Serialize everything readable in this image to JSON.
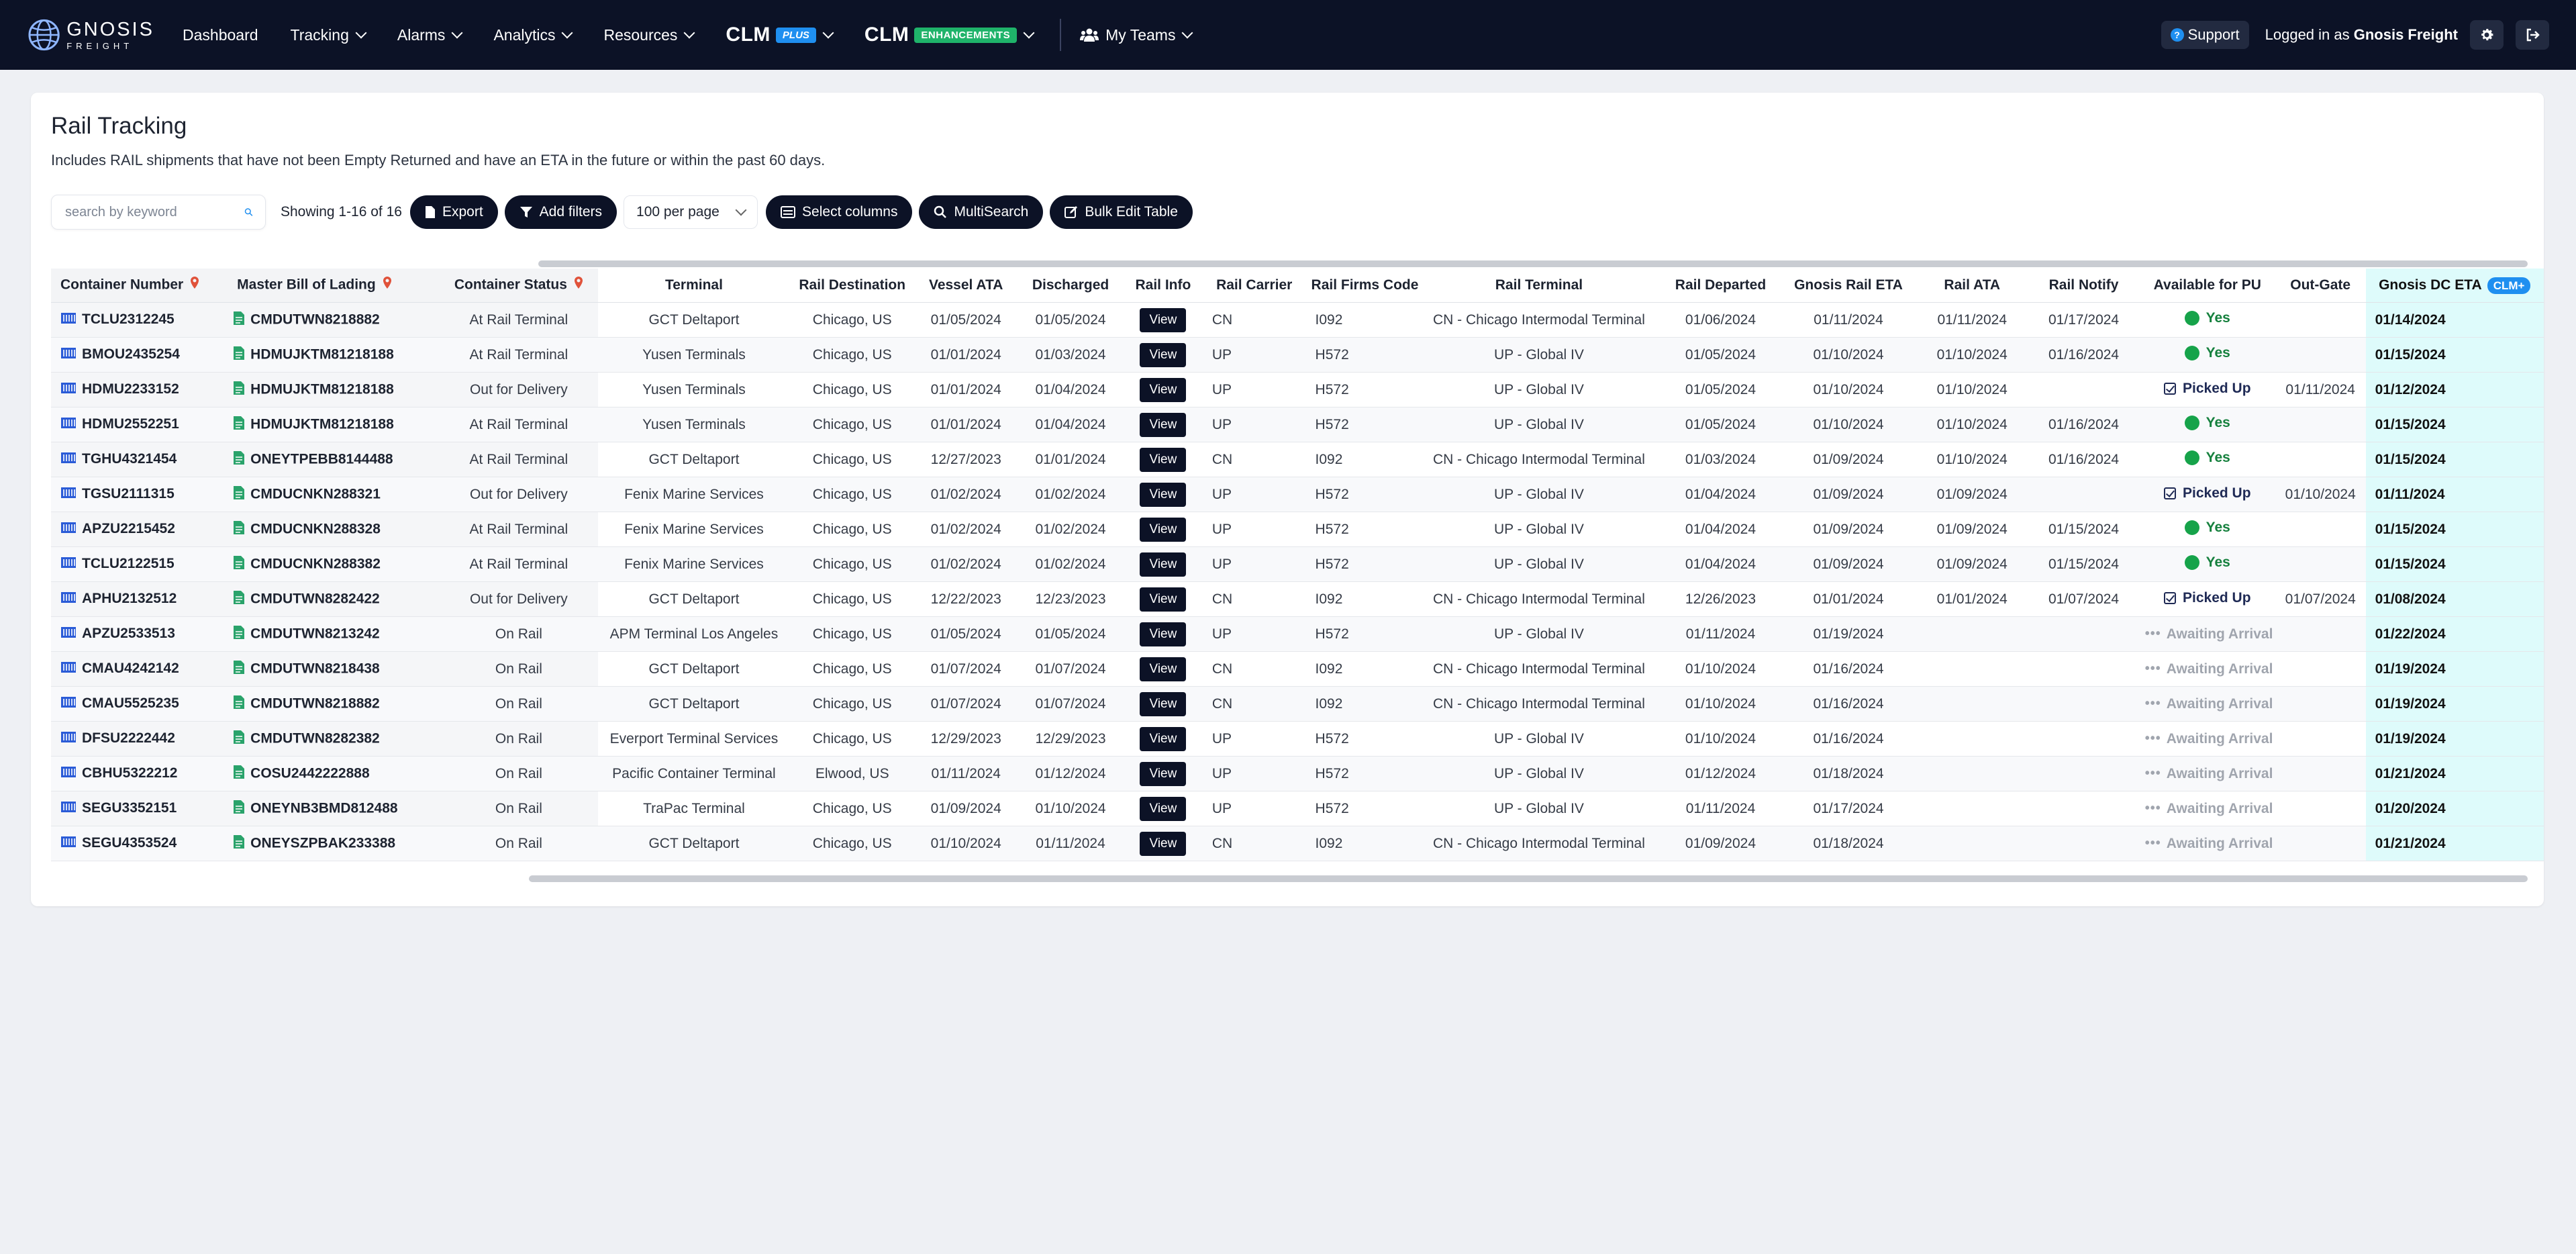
{
  "brand": {
    "name_line1": "GNOSIS",
    "name_line2": "FREIGHT"
  },
  "nav": {
    "items": [
      {
        "label": "Dashboard",
        "dropdown": false
      },
      {
        "label": "Tracking",
        "dropdown": true
      },
      {
        "label": "Alarms",
        "dropdown": true
      },
      {
        "label": "Analytics",
        "dropdown": true
      },
      {
        "label": "Resources",
        "dropdown": true
      }
    ],
    "clm_plus": {
      "label": "CLM",
      "badge": "PLUS"
    },
    "clm_enh": {
      "label": "CLM",
      "badge": "ENHANCEMENTS"
    },
    "my_teams": "My Teams",
    "support": "Support",
    "logged_in_prefix": "Logged in as",
    "user": "Gnosis Freight"
  },
  "page": {
    "title": "Rail Tracking",
    "subtitle": "Includes RAIL shipments that have not been Empty Returned and have an ETA in the future or within the past 60 days."
  },
  "toolbar": {
    "search_placeholder": "search by keyword",
    "showing": "Showing 1-16 of 16",
    "export": "Export",
    "add_filters": "Add filters",
    "per_page": "100 per page",
    "select_columns": "Select columns",
    "multisearch": "MultiSearch",
    "bulk_edit": "Bulk Edit Table"
  },
  "table": {
    "headers": {
      "container_number": "Container Number",
      "mbl": "Master Bill of Lading",
      "container_status": "Container Status",
      "terminal": "Terminal",
      "rail_destination": "Rail Destination",
      "vessel_ata": "Vessel ATA",
      "discharged": "Discharged",
      "rail_info": "Rail Info",
      "rail_carrier": "Rail Carrier",
      "rail_firms_code": "Rail Firms Code",
      "rail_terminal": "Rail Terminal",
      "rail_departed": "Rail Departed",
      "gnosis_rail_eta": "Gnosis Rail ETA",
      "rail_ata": "Rail ATA",
      "rail_notify": "Rail Notify",
      "available_for_pu": "Available for PU",
      "out_gate": "Out-Gate",
      "gnosis_dc_eta": "Gnosis DC ETA",
      "clm_badge": "CLM+"
    },
    "view_label": "View",
    "rows": [
      {
        "container": "TCLU2312245",
        "mbl": "CMDUTWN8218882",
        "status": "At Rail Terminal",
        "terminal": "GCT Deltaport",
        "dest": "Chicago, US",
        "vessel_ata": "01/05/2024",
        "discharged": "01/05/2024",
        "carrier": "CN",
        "firms": "I092",
        "rail_terminal": "CN - Chicago Intermodal Terminal",
        "departed": "01/06/2024",
        "rail_eta": "01/11/2024",
        "rail_ata": "01/11/2024",
        "notify": "01/17/2024",
        "pu_state": "yes",
        "pu_label": "Yes",
        "outgate": "",
        "dc_eta": "01/14/2024"
      },
      {
        "container": "BMOU2435254",
        "mbl": "HDMUJKTM81218188",
        "status": "At Rail Terminal",
        "terminal": "Yusen Terminals",
        "dest": "Chicago, US",
        "vessel_ata": "01/01/2024",
        "discharged": "01/03/2024",
        "carrier": "UP",
        "firms": "H572",
        "rail_terminal": "UP - Global IV",
        "departed": "01/05/2024",
        "rail_eta": "01/10/2024",
        "rail_ata": "01/10/2024",
        "notify": "01/16/2024",
        "pu_state": "yes",
        "pu_label": "Yes",
        "outgate": "",
        "dc_eta": "01/15/2024"
      },
      {
        "container": "HDMU2233152",
        "mbl": "HDMUJKTM81218188",
        "status": "Out for Delivery",
        "terminal": "Yusen Terminals",
        "dest": "Chicago, US",
        "vessel_ata": "01/01/2024",
        "discharged": "01/04/2024",
        "carrier": "UP",
        "firms": "H572",
        "rail_terminal": "UP - Global IV",
        "departed": "01/05/2024",
        "rail_eta": "01/10/2024",
        "rail_ata": "01/10/2024",
        "notify": "",
        "pu_state": "picked",
        "pu_label": "Picked Up",
        "outgate": "01/11/2024",
        "dc_eta": "01/12/2024"
      },
      {
        "container": "HDMU2552251",
        "mbl": "HDMUJKTM81218188",
        "status": "At Rail Terminal",
        "terminal": "Yusen Terminals",
        "dest": "Chicago, US",
        "vessel_ata": "01/01/2024",
        "discharged": "01/04/2024",
        "carrier": "UP",
        "firms": "H572",
        "rail_terminal": "UP - Global IV",
        "departed": "01/05/2024",
        "rail_eta": "01/10/2024",
        "rail_ata": "01/10/2024",
        "notify": "01/16/2024",
        "pu_state": "yes",
        "pu_label": "Yes",
        "outgate": "",
        "dc_eta": "01/15/2024"
      },
      {
        "container": "TGHU4321454",
        "mbl": "ONEYTPEBB8144488",
        "status": "At Rail Terminal",
        "terminal": "GCT Deltaport",
        "dest": "Chicago, US",
        "vessel_ata": "12/27/2023",
        "discharged": "01/01/2024",
        "carrier": "CN",
        "firms": "I092",
        "rail_terminal": "CN - Chicago Intermodal Terminal",
        "departed": "01/03/2024",
        "rail_eta": "01/09/2024",
        "rail_ata": "01/10/2024",
        "notify": "01/16/2024",
        "pu_state": "yes",
        "pu_label": "Yes",
        "outgate": "",
        "dc_eta": "01/15/2024"
      },
      {
        "container": "TGSU2111315",
        "mbl": "CMDUCNKN288321",
        "status": "Out for Delivery",
        "terminal": "Fenix Marine Services",
        "dest": "Chicago, US",
        "vessel_ata": "01/02/2024",
        "discharged": "01/02/2024",
        "carrier": "UP",
        "firms": "H572",
        "rail_terminal": "UP - Global IV",
        "departed": "01/04/2024",
        "rail_eta": "01/09/2024",
        "rail_ata": "01/09/2024",
        "notify": "",
        "pu_state": "picked",
        "pu_label": "Picked Up",
        "outgate": "01/10/2024",
        "dc_eta": "01/11/2024"
      },
      {
        "container": "APZU2215452",
        "mbl": "CMDUCNKN288328",
        "status": "At Rail Terminal",
        "terminal": "Fenix Marine Services",
        "dest": "Chicago, US",
        "vessel_ata": "01/02/2024",
        "discharged": "01/02/2024",
        "carrier": "UP",
        "firms": "H572",
        "rail_terminal": "UP - Global IV",
        "departed": "01/04/2024",
        "rail_eta": "01/09/2024",
        "rail_ata": "01/09/2024",
        "notify": "01/15/2024",
        "pu_state": "yes",
        "pu_label": "Yes",
        "outgate": "",
        "dc_eta": "01/15/2024"
      },
      {
        "container": "TCLU2122515",
        "mbl": "CMDUCNKN288382",
        "status": "At Rail Terminal",
        "terminal": "Fenix Marine Services",
        "dest": "Chicago, US",
        "vessel_ata": "01/02/2024",
        "discharged": "01/02/2024",
        "carrier": "UP",
        "firms": "H572",
        "rail_terminal": "UP - Global IV",
        "departed": "01/04/2024",
        "rail_eta": "01/09/2024",
        "rail_ata": "01/09/2024",
        "notify": "01/15/2024",
        "pu_state": "yes",
        "pu_label": "Yes",
        "outgate": "",
        "dc_eta": "01/15/2024"
      },
      {
        "container": "APHU2132512",
        "mbl": "CMDUTWN8282422",
        "status": "Out for Delivery",
        "terminal": "GCT Deltaport",
        "dest": "Chicago, US",
        "vessel_ata": "12/22/2023",
        "discharged": "12/23/2023",
        "carrier": "CN",
        "firms": "I092",
        "rail_terminal": "CN - Chicago Intermodal Terminal",
        "departed": "12/26/2023",
        "rail_eta": "01/01/2024",
        "rail_ata": "01/01/2024",
        "notify": "01/07/2024",
        "pu_state": "picked",
        "pu_label": "Picked Up",
        "outgate": "01/07/2024",
        "dc_eta": "01/08/2024"
      },
      {
        "container": "APZU2533513",
        "mbl": "CMDUTWN8213242",
        "status": "On Rail",
        "terminal": "APM Terminal Los Angeles",
        "dest": "Chicago, US",
        "vessel_ata": "01/05/2024",
        "discharged": "01/05/2024",
        "carrier": "UP",
        "firms": "H572",
        "rail_terminal": "UP - Global IV",
        "departed": "01/11/2024",
        "rail_eta": "01/19/2024",
        "rail_ata": "",
        "notify": "",
        "pu_state": "awaiting",
        "pu_label": "Awaiting Arrival",
        "outgate": "",
        "dc_eta": "01/22/2024"
      },
      {
        "container": "CMAU4242142",
        "mbl": "CMDUTWN8218438",
        "status": "On Rail",
        "terminal": "GCT Deltaport",
        "dest": "Chicago, US",
        "vessel_ata": "01/07/2024",
        "discharged": "01/07/2024",
        "carrier": "CN",
        "firms": "I092",
        "rail_terminal": "CN - Chicago Intermodal Terminal",
        "departed": "01/10/2024",
        "rail_eta": "01/16/2024",
        "rail_ata": "",
        "notify": "",
        "pu_state": "awaiting",
        "pu_label": "Awaiting Arrival",
        "outgate": "",
        "dc_eta": "01/19/2024"
      },
      {
        "container": "CMAU5525235",
        "mbl": "CMDUTWN8218882",
        "status": "On Rail",
        "terminal": "GCT Deltaport",
        "dest": "Chicago, US",
        "vessel_ata": "01/07/2024",
        "discharged": "01/07/2024",
        "carrier": "CN",
        "firms": "I092",
        "rail_terminal": "CN - Chicago Intermodal Terminal",
        "departed": "01/10/2024",
        "rail_eta": "01/16/2024",
        "rail_ata": "",
        "notify": "",
        "pu_state": "awaiting",
        "pu_label": "Awaiting Arrival",
        "outgate": "",
        "dc_eta": "01/19/2024"
      },
      {
        "container": "DFSU2222442",
        "mbl": "CMDUTWN8282382",
        "status": "On Rail",
        "terminal": "Everport Terminal Services",
        "dest": "Chicago, US",
        "vessel_ata": "12/29/2023",
        "discharged": "12/29/2023",
        "carrier": "UP",
        "firms": "H572",
        "rail_terminal": "UP - Global IV",
        "departed": "01/10/2024",
        "rail_eta": "01/16/2024",
        "rail_ata": "",
        "notify": "",
        "pu_state": "awaiting",
        "pu_label": "Awaiting Arrival",
        "outgate": "",
        "dc_eta": "01/19/2024"
      },
      {
        "container": "CBHU5322212",
        "mbl": "COSU2442222888",
        "status": "On Rail",
        "terminal": "Pacific Container Terminal",
        "dest": "Elwood, US",
        "vessel_ata": "01/11/2024",
        "discharged": "01/12/2024",
        "carrier": "UP",
        "firms": "H572",
        "rail_terminal": "UP - Global IV",
        "departed": "01/12/2024",
        "rail_eta": "01/18/2024",
        "rail_ata": "",
        "notify": "",
        "pu_state": "awaiting",
        "pu_label": "Awaiting Arrival",
        "outgate": "",
        "dc_eta": "01/21/2024"
      },
      {
        "container": "SEGU3352151",
        "mbl": "ONEYNB3BMD812488",
        "status": "On Rail",
        "terminal": "TraPac Terminal",
        "dest": "Chicago, US",
        "vessel_ata": "01/09/2024",
        "discharged": "01/10/2024",
        "carrier": "UP",
        "firms": "H572",
        "rail_terminal": "UP - Global IV",
        "departed": "01/11/2024",
        "rail_eta": "01/17/2024",
        "rail_ata": "",
        "notify": "",
        "pu_state": "awaiting",
        "pu_label": "Awaiting Arrival",
        "outgate": "",
        "dc_eta": "01/20/2024"
      },
      {
        "container": "SEGU4353524",
        "mbl": "ONEYSZPBAK233388",
        "status": "On Rail",
        "terminal": "GCT Deltaport",
        "dest": "Chicago, US",
        "vessel_ata": "01/10/2024",
        "discharged": "01/11/2024",
        "carrier": "CN",
        "firms": "I092",
        "rail_terminal": "CN - Chicago Intermodal Terminal",
        "departed": "01/09/2024",
        "rail_eta": "01/18/2024",
        "rail_ata": "",
        "notify": "",
        "pu_state": "awaiting",
        "pu_label": "Awaiting Arrival",
        "outgate": "",
        "dc_eta": "01/21/2024"
      }
    ]
  },
  "colors": {
    "nav_bg": "#0c1226",
    "accent_blue": "#1f8ff0",
    "accent_green": "#1fb36a",
    "eta_column_bg": "#defbfb",
    "yes_green": "#16a34a",
    "awaiting_gray": "#a0a5ae"
  }
}
